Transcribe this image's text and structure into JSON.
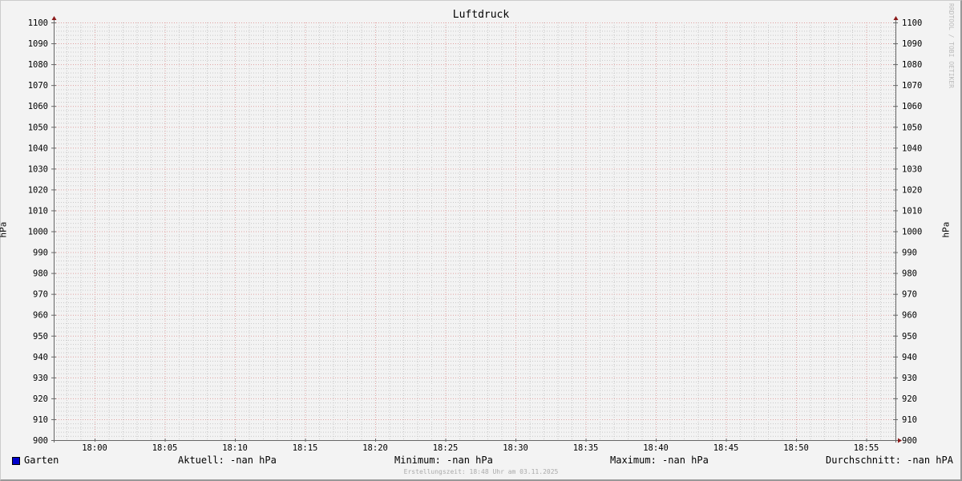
{
  "chart_data": {
    "type": "line",
    "title": "Luftdruck",
    "ylabel": "hPa",
    "ylim": [
      900,
      1100
    ],
    "y_ticks": [
      900,
      910,
      920,
      930,
      940,
      950,
      960,
      970,
      980,
      990,
      1000,
      1010,
      1020,
      1030,
      1040,
      1050,
      1060,
      1070,
      1080,
      1090,
      1100
    ],
    "x_range": [
      "17:57",
      "18:57"
    ],
    "x_ticks": [
      "18:00",
      "18:05",
      "18:10",
      "18:15",
      "18:20",
      "18:25",
      "18:30",
      "18:35",
      "18:40",
      "18:45",
      "18:50",
      "18:55"
    ],
    "grid": true,
    "series": [
      {
        "name": "Garten",
        "color": "#0000cc",
        "values": []
      }
    ],
    "watermark": "RRDTOOL / TOBI OETIKER"
  },
  "legend": {
    "series_name": "Garten",
    "aktuell": "Aktuell: -nan hPa",
    "minimum": "Minimum: -nan hPa",
    "maximum": "Maximum: -nan hPa",
    "durchschnitt": "Durchschnitt: -nan hPA"
  },
  "footer": "Erstellungszeit: 18:48 Uhr am 03.11.2025",
  "colors": {
    "major_grid": "#e0a0a0",
    "minor_grid": "#c8c8c8",
    "axis": "#666666",
    "arrow": "#8b1a1a"
  }
}
